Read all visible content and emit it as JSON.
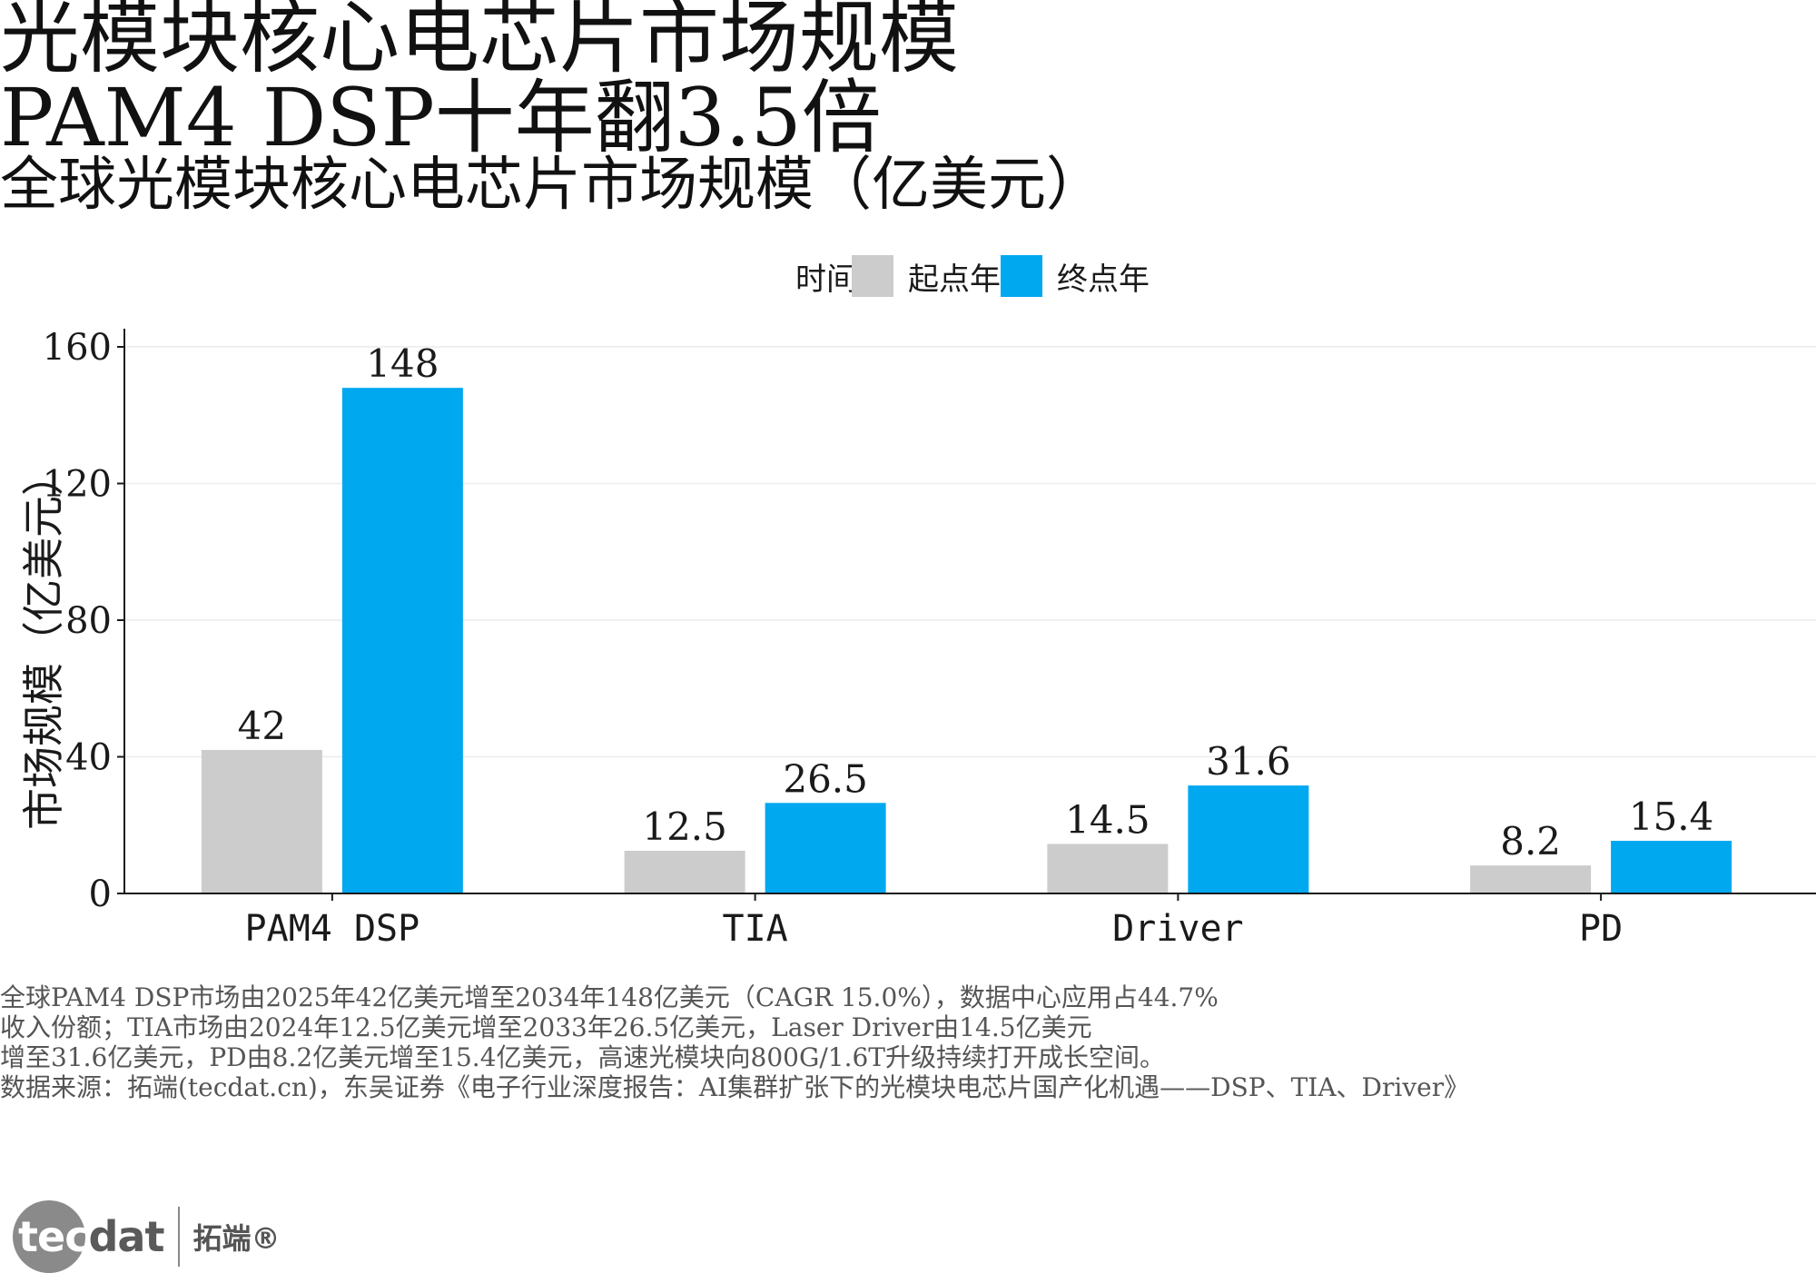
{
  "title_line1": "光模块核心电芯片市场规模",
  "title_line2": "PAM4 DSP十年翻3.5倍",
  "subtitle": "全球光模块核心电芯片市场规模（亿美元）",
  "legend": {
    "title": "时间",
    "items": [
      {
        "label": "起点年",
        "color": "#cccccc"
      },
      {
        "label": "终点年",
        "color": "#00a8f0"
      }
    ]
  },
  "notes": [
    "全球PAM4 DSP市场由2025年42亿美元增至2034年148亿美元（CAGR 15.0%），数据中心应用占44.7%",
    "收入份额；TIA市场由2024年12.5亿美元增至2033年26.5亿美元，Laser Driver由14.5亿美元",
    "增至31.6亿美元，PD由8.2亿美元增至15.4亿美元，高速光模块向800G/1.6T升级持续打开成长空间。",
    "数据来源：拓端(tecdat.cn)，东吴证券《电子行业深度报告：AI集群扩张下的光模块电芯片国产化机遇——DSP、TIA、Driver》"
  ],
  "logo": {
    "word_main": "tec",
    "word_tail": "dat",
    "cn": "拓端®"
  },
  "chart_data": {
    "type": "bar",
    "categories": [
      "PAM4 DSP",
      "TIA",
      "Driver",
      "PD"
    ],
    "series": [
      {
        "name": "起点年",
        "values": [
          42,
          12.5,
          14.5,
          8.2
        ],
        "labels": [
          "42",
          "12.5",
          "14.5",
          "8.2"
        ],
        "color": "#cccccc"
      },
      {
        "name": "终点年",
        "values": [
          148,
          26.5,
          31.6,
          15.4
        ],
        "labels": [
          "148",
          "26.5",
          "31.6",
          "15.4"
        ],
        "color": "#00a8f0"
      }
    ],
    "ylabel": "市场规模（亿美元）",
    "xlabel": "",
    "ylim": [
      0,
      160
    ],
    "yticks": [
      0,
      40,
      80,
      120,
      160
    ],
    "grid": true,
    "legend_position": "top"
  }
}
